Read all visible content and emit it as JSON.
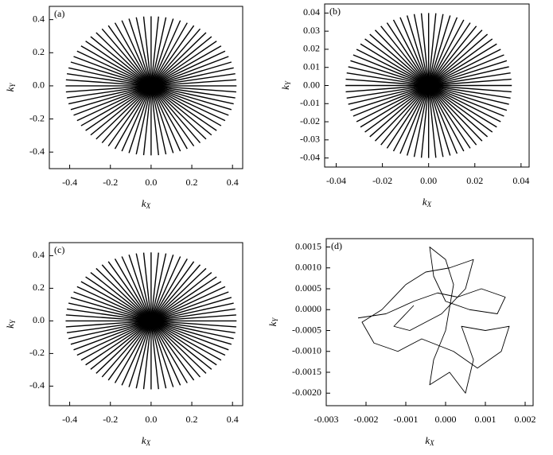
{
  "chart_data": [
    {
      "type": "radial",
      "panel_label": "(a)",
      "xlabel": {
        "base": "k",
        "sub": "X"
      },
      "ylabel": {
        "base": "k",
        "sub": "Y"
      },
      "spokes": 72,
      "radius_x": 0.42,
      "radius_y": 0.42,
      "color": "#000000",
      "xlim": [
        -0.5,
        0.45
      ],
      "ylim": [
        -0.5,
        0.48
      ],
      "xticks": [
        -0.4,
        -0.2,
        {
          "value": 0,
          "label": "0.0"
        },
        0.2,
        0.4
      ],
      "yticks": [
        -0.4,
        -0.2,
        {
          "value": 0,
          "label": "0.0"
        },
        0.2,
        0.4
      ]
    },
    {
      "type": "radial",
      "panel_label": "(b)",
      "xlabel": {
        "base": "k",
        "sub": "X"
      },
      "ylabel": {
        "base": "k",
        "sub": "Y"
      },
      "spokes": 72,
      "radius_x": 0.036,
      "radius_y": 0.04,
      "color": "#000000",
      "xlim": [
        -0.045,
        0.0435
      ],
      "ylim": [
        -0.045,
        0.045
      ],
      "xticks": [
        -0.04,
        -0.02,
        {
          "value": 0,
          "label": "0.00"
        },
        0.02,
        0.04
      ],
      "yticks": [
        -0.04,
        -0.03,
        -0.02,
        -0.01,
        {
          "value": 0,
          "label": "0.00"
        },
        0.01,
        0.02,
        0.03,
        0.04
      ]
    },
    {
      "type": "radial",
      "panel_label": "(c)",
      "xlabel": {
        "base": "k",
        "sub": "X"
      },
      "ylabel": {
        "base": "k",
        "sub": "Y"
      },
      "spokes": 72,
      "radius_x": 0.42,
      "radius_y": 0.42,
      "color": "#000000",
      "xlim": [
        -0.5,
        0.45
      ],
      "ylim": [
        -0.52,
        0.48
      ],
      "xticks": [
        -0.4,
        -0.2,
        {
          "value": 0,
          "label": "0.0"
        },
        0.2,
        0.4
      ],
      "yticks": [
        -0.4,
        -0.2,
        {
          "value": 0,
          "label": "0.0"
        },
        0.2,
        0.4
      ]
    },
    {
      "type": "line",
      "panel_label": "(d)",
      "xlabel": {
        "base": "k",
        "sub": "X"
      },
      "ylabel": {
        "base": "k",
        "sub": "Y"
      },
      "color": "#000000",
      "x": [
        -0.0022,
        -0.0015,
        -0.0008,
        -0.0002,
        0.0003,
        0.0009,
        0.0015,
        0.0013,
        0.0006,
        0.0,
        -0.0003,
        -0.0004,
        0.0,
        0.0002,
        0.0,
        -0.0003,
        -0.0004,
        0.0001,
        0.0005,
        0.0007,
        0.0004,
        0.001,
        0.0016,
        0.0014,
        0.0008,
        0.0002,
        -0.0006,
        -0.0012,
        -0.0018,
        -0.0021,
        -0.0016,
        -0.001,
        -0.0005,
        0.0001,
        0.0007,
        0.0005,
        -0.0001,
        -0.0009,
        -0.0013,
        -0.0008
      ],
      "values": [
        -0.0002,
        -0.0001,
        0.0002,
        0.0004,
        0.0003,
        0.0005,
        0.0003,
        -0.0001,
        0.0,
        0.0002,
        0.0008,
        0.0015,
        0.0012,
        0.0006,
        -0.0005,
        -0.0012,
        -0.0018,
        -0.0015,
        -0.002,
        -0.0012,
        -0.0004,
        -0.0005,
        -0.0004,
        -0.001,
        -0.0014,
        -0.001,
        -0.0007,
        -0.001,
        -0.0008,
        -0.0003,
        0.0,
        0.0006,
        0.0009,
        0.001,
        0.0012,
        0.0005,
        -0.0001,
        -0.0005,
        -0.0004,
        0.0001
      ],
      "xlim": [
        -0.003,
        0.0022
      ],
      "ylim": [
        -0.0023,
        0.0017
      ],
      "xticks": [
        {
          "value": -0.003,
          "label": "-0.003"
        },
        {
          "value": -0.002,
          "label": "-0.002"
        },
        {
          "value": -0.001,
          "label": "-0.001"
        },
        {
          "value": 0,
          "label": "0.000"
        },
        {
          "value": 0.001,
          "label": "0.001"
        },
        {
          "value": 0.002,
          "label": "0.002"
        }
      ],
      "yticks": [
        {
          "value": -0.002,
          "label": "-0.0020"
        },
        {
          "value": -0.0015,
          "label": "-0.0015"
        },
        {
          "value": -0.001,
          "label": "-0.0010"
        },
        {
          "value": -0.0005,
          "label": "-0.0005"
        },
        {
          "value": 0,
          "label": "0.0000"
        },
        {
          "value": 0.0005,
          "label": "0.0005"
        },
        {
          "value": 0.001,
          "label": "0.0010"
        },
        0.0015
      ]
    }
  ]
}
